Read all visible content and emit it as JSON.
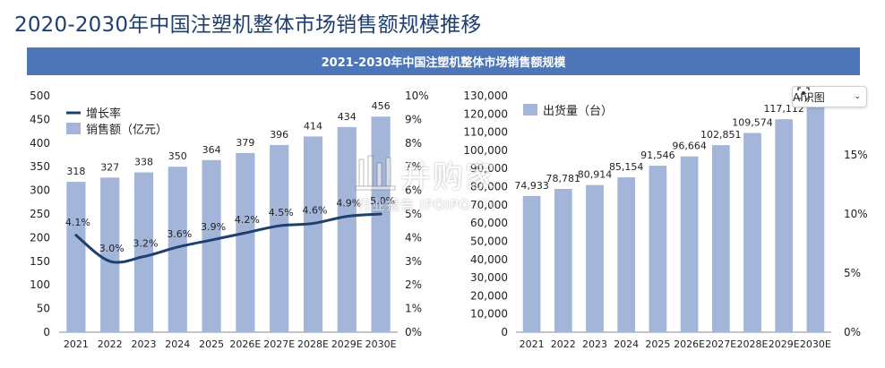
{
  "page": {
    "title": "2020-2030年中国注塑机整体市场销售额规模推移",
    "banner": "2021-2030年中国注塑机整体市场销售额规模"
  },
  "colors": {
    "bar": "#a3b5d8",
    "line": "#1f3f6e",
    "banner": "#4d76b8",
    "title": "#1f3f6e"
  },
  "ai_button": {
    "label": "AI识图",
    "icon": "ai-scan-icon"
  },
  "watermark": {
    "main": "并购家",
    "sub": "行业报告 IPOIPO.CN",
    "icon": "watermark-logo-icon"
  },
  "chart_data": [
    {
      "type": "bar",
      "categories": [
        "2021",
        "2022",
        "2023",
        "2024",
        "2025",
        "2026E",
        "2027E",
        "2028E",
        "2029E",
        "2030E"
      ],
      "series": [
        {
          "name": "销售额（亿元）",
          "type": "bar",
          "axis": "left",
          "values": [
            318,
            327,
            338,
            350,
            364,
            379,
            396,
            414,
            434,
            456
          ],
          "labels": [
            "318",
            "327",
            "338",
            "350",
            "364",
            "379",
            "396",
            "414",
            "434",
            "456"
          ]
        },
        {
          "name": "增长率",
          "type": "line",
          "axis": "right",
          "values": [
            4.1,
            3.0,
            3.2,
            3.6,
            3.9,
            4.2,
            4.5,
            4.6,
            4.9,
            5.0
          ],
          "labels": [
            "4.1%",
            "3.0%",
            "3.2%",
            "3.6%",
            "3.9%",
            "4.2%",
            "4.5%",
            "4.6%",
            "4.9%",
            "5.0%"
          ]
        }
      ],
      "left_axis": {
        "min": 0,
        "max": 500,
        "step": 50,
        "ticks": [
          "0",
          "50",
          "100",
          "150",
          "200",
          "250",
          "300",
          "350",
          "400",
          "450",
          "500"
        ]
      },
      "right_axis": {
        "min": 0,
        "max": 10,
        "step": 1,
        "ticks": [
          "0%",
          "1%",
          "2%",
          "3%",
          "4%",
          "5%",
          "6%",
          "7%",
          "8%",
          "9%",
          "10%"
        ]
      },
      "legend": [
        {
          "label": "增长率",
          "kind": "line"
        },
        {
          "label": "销售额（亿元）",
          "kind": "bar"
        }
      ],
      "legend_position": "top-left",
      "grid": false
    },
    {
      "type": "bar",
      "categories": [
        "2021",
        "2022",
        "2023",
        "2024",
        "2025",
        "2026E",
        "2027E",
        "2028E",
        "2029E",
        "2030E"
      ],
      "series": [
        {
          "name": "出货量（台）",
          "type": "bar",
          "axis": "left",
          "values": [
            74933,
            78781,
            80914,
            85154,
            91546,
            96664,
            102851,
            109574,
            117112,
            124000
          ],
          "labels": [
            "74,933",
            "78,781",
            "80,914",
            "85,154",
            "91,546",
            "96,664",
            "102,851",
            "109,574",
            "117,112",
            ""
          ]
        }
      ],
      "left_axis": {
        "min": 0,
        "max": 130000,
        "step": 10000,
        "ticks": [
          "0",
          "10,000",
          "20,000",
          "30,000",
          "40,000",
          "50,000",
          "60,000",
          "70,000",
          "80,000",
          "90,000",
          "100,000",
          "110,000",
          "120,000",
          "130,000"
        ]
      },
      "right_axis": {
        "min": 0,
        "max": 20,
        "step": 5,
        "ticks": [
          "0%",
          "5%",
          "10%",
          "15%"
        ]
      },
      "legend": [
        {
          "label": "出货量（台）",
          "kind": "bar"
        }
      ],
      "legend_position": "top-left",
      "grid": false
    }
  ]
}
